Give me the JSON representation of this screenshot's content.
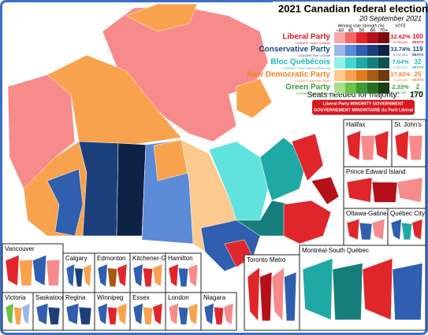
{
  "title": "2021 Canadian federal election",
  "subtitle": "20 September 2021",
  "legend": {
    "strength_label": "Winning Vote Strength (%)",
    "vote_label": "VOTE",
    "scale": [
      "−40",
      "40",
      "50",
      "60",
      "70+"
    ]
  },
  "parties": [
    {
      "name": "Liberal Party",
      "leader": "LEADER: Justin Trudeau",
      "percent": "32.62%",
      "votes": "5,556,629",
      "seats": 160,
      "seats_label": "SEATS",
      "color": "#d71920",
      "shades": [
        "#f7a8a8",
        "#f06a6a",
        "#e0262b",
        "#b5111a",
        "#7d0a10"
      ]
    },
    {
      "name": "Conservative Party",
      "leader": "LEADER: Erin O'Toole",
      "percent": "33.74%",
      "votes": "5,747,410",
      "seats": 119,
      "seats_label": "SEATS",
      "color": "#1a4782",
      "shades": [
        "#9bb8e8",
        "#5b8ad6",
        "#2f5fae",
        "#1c3f7c",
        "#0e2245"
      ]
    },
    {
      "name": "Bloc Québécois",
      "leader": "LEADER: Yves-François Blanchet",
      "percent": "7.64%",
      "votes": "1,301,615",
      "seats": 32,
      "seats_label": "SEATS",
      "color": "#1fb7b7",
      "shades": [
        "#8ff0ea",
        "#43d6d0",
        "#1fa9a4",
        "#167e7a",
        "#0c5451"
      ]
    },
    {
      "name": "New Democratic Party",
      "leader": "LEADER: Jagmeet Singh",
      "percent": "17.82%",
      "votes": "3,036,348",
      "seats": 25,
      "seats_label": "SEATS",
      "color": "#f58220",
      "shades": [
        "#fcc98f",
        "#f9a24d",
        "#e27d1b",
        "#a75a12",
        "#6e3a0a"
      ]
    },
    {
      "name": "Green Party",
      "leader": "LEADER: Annamie Paul",
      "percent": "2.33%",
      "votes": "396,988",
      "seats": 2,
      "seats_label": "SEATS",
      "color": "#3d9b35",
      "shades": [
        "#a8df8c",
        "#6cc24a",
        "#3d9b35",
        "#2a6e24",
        "#173f14"
      ]
    }
  ],
  "majority": {
    "label": "Seats needed for majority:",
    "value": 170
  },
  "government": [
    "Liberal Party MINORITY GOVERNMENT",
    "GOUVERNEMENT MINORITAIRE du Parti Libéral"
  ],
  "insets": [
    "Halifax",
    "St. John's",
    "Prince Edward Island",
    "Ottawa-Gatineau",
    "Québec City",
    "Montréal-South Québec",
    "Toronto Metro",
    "Vancouver",
    "Calgary",
    "Edmonton",
    "Kitchener-Guelph",
    "Hamilton",
    "Victoria",
    "Saskatoon",
    "Regina",
    "Winnipeg",
    "Essex",
    "London",
    "Niagara"
  ]
}
